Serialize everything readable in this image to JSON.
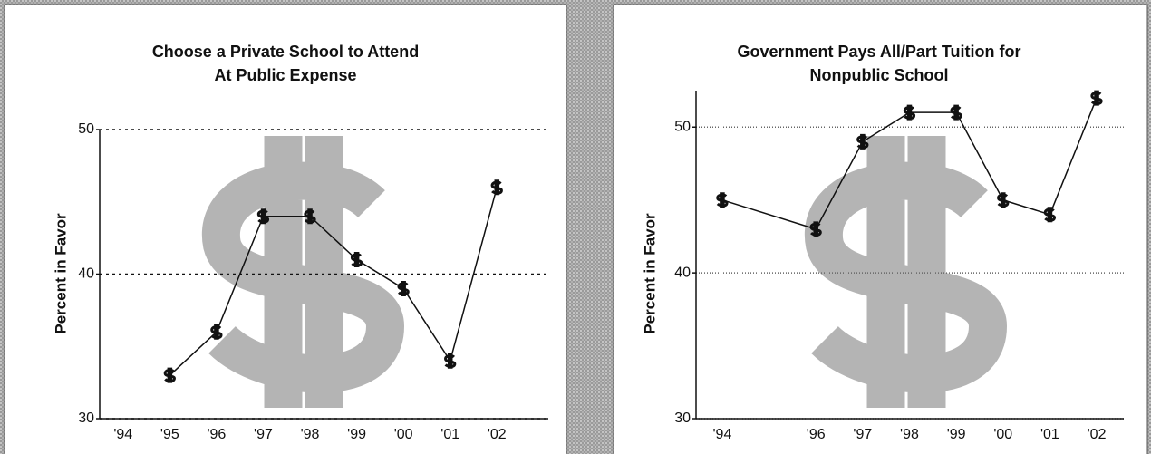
{
  "chart_data": [
    {
      "type": "line",
      "title": [
        "Choose a Private School to Attend",
        "At Public Expense"
      ],
      "y_label": "Percent in Favor",
      "x": [
        1995,
        1996,
        1997,
        1998,
        1999,
        2000,
        2001,
        2002
      ],
      "values": [
        33,
        36,
        44,
        44,
        41,
        39,
        34,
        46
      ],
      "color": "#111111",
      "xlim": [
        1993.5,
        2003.1
      ],
      "xticks": [
        {
          "value": 1994,
          "label": "'94"
        },
        {
          "value": 1995,
          "label": "'95"
        },
        {
          "value": 1996,
          "label": "'96"
        },
        {
          "value": 1997,
          "label": "'97"
        },
        {
          "value": 1998,
          "label": "'98"
        },
        {
          "value": 1999,
          "label": "'99"
        },
        {
          "value": 2000,
          "label": "'00"
        },
        {
          "value": 2001,
          "label": "'01"
        },
        {
          "value": 2002,
          "label": "'02"
        }
      ],
      "ylim": [
        30,
        50
      ],
      "yticks": [
        30,
        40,
        50
      ],
      "grid": true
    },
    {
      "type": "line",
      "title": [
        "Government Pays All/Part Tuition for",
        "Nonpublic School"
      ],
      "y_label": "Percent in Favor",
      "x": [
        1994,
        1996,
        1997,
        1998,
        1999,
        2000,
        2001,
        2002
      ],
      "values": [
        45,
        43,
        49,
        51,
        51,
        45,
        44,
        52
      ],
      "color": "#111111",
      "xlim": [
        1993.44,
        2002.58
      ],
      "xticks": [
        {
          "value": 1994,
          "label": "'94"
        },
        {
          "value": 1996,
          "label": "'96"
        },
        {
          "value": 1997,
          "label": "'97"
        },
        {
          "value": 1998,
          "label": "'98"
        },
        {
          "value": 1999,
          "label": "'99"
        },
        {
          "value": 2000,
          "label": "'00"
        },
        {
          "value": 2001,
          "label": "'01"
        },
        {
          "value": 2002,
          "label": "'02"
        }
      ],
      "ylim": [
        30,
        53
      ],
      "yticks": [
        30,
        40,
        50
      ],
      "grid": true
    }
  ]
}
